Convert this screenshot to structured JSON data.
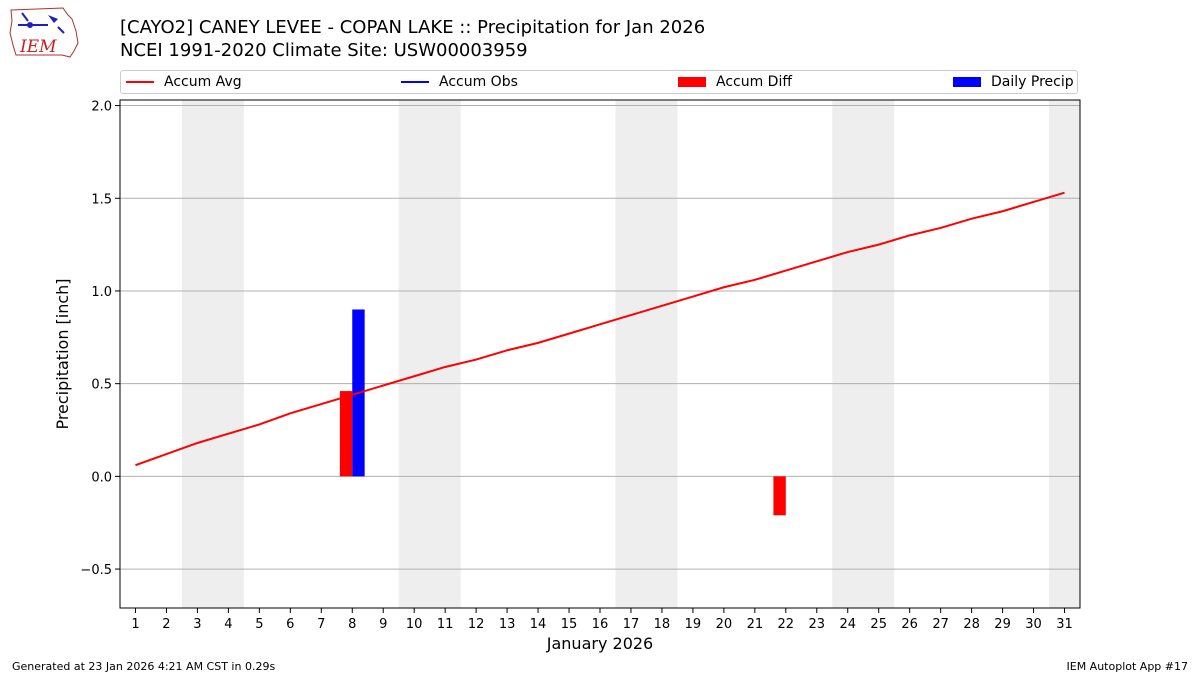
{
  "title_line1": "[CAYO2] CANEY LEVEE - COPAN LAKE :: Precipitation for Jan 2026",
  "title_line2": "NCEI 1991-2020 Climate Site: USW00003959",
  "footer_left": "Generated at 23 Jan 2026 4:21 AM CST in 0.29s",
  "footer_right": "IEM Autoplot App #17",
  "logo_text": "IEM",
  "legend": [
    {
      "label": "Accum Avg",
      "kind": "line",
      "color": "#ff0000"
    },
    {
      "label": "Accum Obs",
      "kind": "line",
      "color": "#0000ff"
    },
    {
      "label": "Accum Diff",
      "kind": "box",
      "color": "#ff0000"
    },
    {
      "label": "Daily Precip",
      "kind": "box",
      "color": "#0000ff"
    }
  ],
  "chart_data": {
    "type": "line+bar",
    "xlabel": "January 2026",
    "ylabel": "Precipitation [inch]",
    "xlim": [
      0.5,
      31.5
    ],
    "ylim": [
      -0.71,
      2.03
    ],
    "x": [
      1,
      2,
      3,
      4,
      5,
      6,
      7,
      8,
      9,
      10,
      11,
      12,
      13,
      14,
      15,
      16,
      17,
      18,
      19,
      20,
      21,
      22,
      23,
      24,
      25,
      26,
      27,
      28,
      29,
      30,
      31
    ],
    "x_tick_labels": [
      "1",
      "2",
      "3",
      "4",
      "5",
      "6",
      "7",
      "8",
      "9",
      "10",
      "11",
      "12",
      "13",
      "14",
      "15",
      "16",
      "17",
      "18",
      "19",
      "20",
      "21",
      "22",
      "23",
      "24",
      "25",
      "26",
      "27",
      "28",
      "29",
      "30",
      "31"
    ],
    "y_ticks": [
      -0.5,
      0.0,
      0.5,
      1.0,
      1.5,
      2.0
    ],
    "y_tick_labels": [
      "−0.5",
      "0.0",
      "0.5",
      "1.0",
      "1.5",
      "2.0"
    ],
    "grid": "horizontal",
    "weekend_shading": [
      [
        2.5,
        4.5
      ],
      [
        9.5,
        11.5
      ],
      [
        16.5,
        18.5
      ],
      [
        23.5,
        25.5
      ],
      [
        30.5,
        31.5
      ]
    ],
    "series": [
      {
        "name": "Accum Avg",
        "type": "line",
        "color": "#ff0000",
        "values": [
          0.06,
          0.12,
          0.18,
          0.23,
          0.28,
          0.34,
          0.39,
          0.44,
          0.49,
          0.54,
          0.59,
          0.63,
          0.68,
          0.72,
          0.77,
          0.82,
          0.87,
          0.92,
          0.97,
          1.02,
          1.06,
          1.11,
          1.16,
          1.21,
          1.25,
          1.3,
          1.34,
          1.39,
          1.43,
          1.48,
          1.53
        ]
      },
      {
        "name": "Accum Diff",
        "type": "bar",
        "color": "#ff0000",
        "offset": -0.2,
        "points": [
          {
            "x": 8,
            "y": 0.46
          },
          {
            "x": 22,
            "y": -0.21
          }
        ]
      },
      {
        "name": "Daily Precip",
        "type": "bar",
        "color": "#0000ff",
        "offset": 0.2,
        "points": [
          {
            "x": 8,
            "y": 0.9
          }
        ]
      }
    ]
  }
}
